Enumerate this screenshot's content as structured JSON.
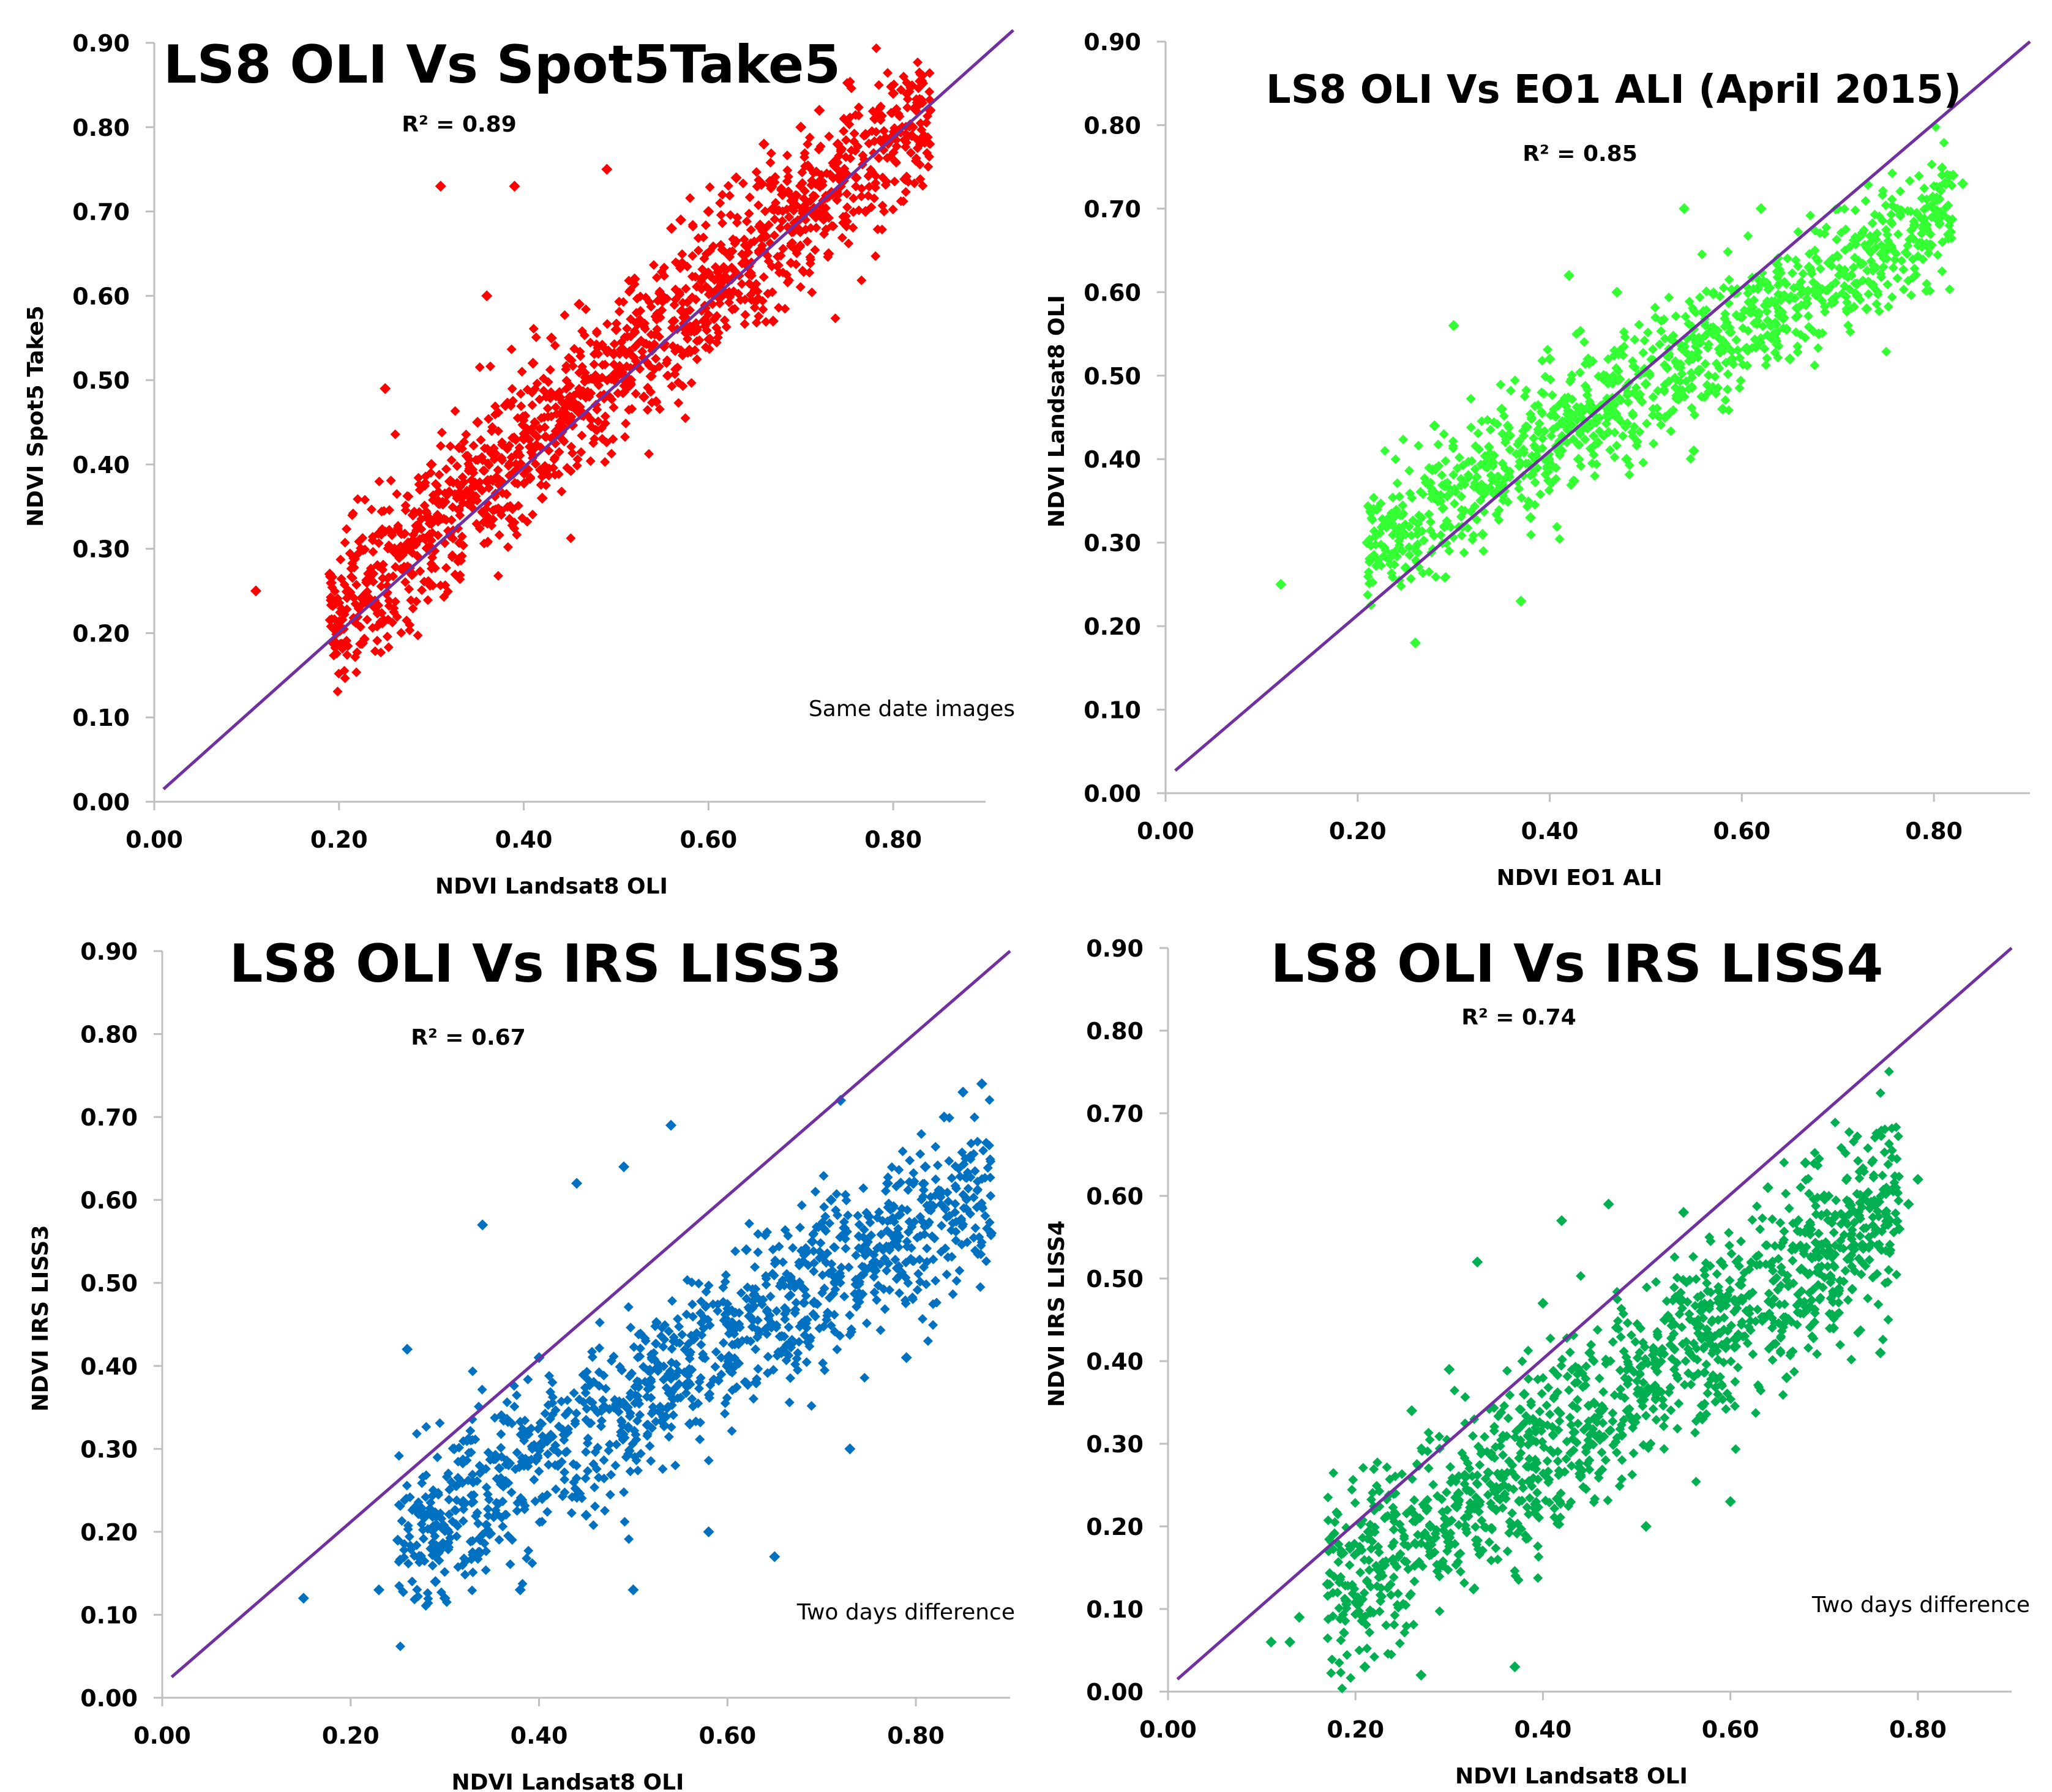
{
  "chart_data": [
    {
      "type": "scatter",
      "title": "LS8 OLI Vs Spot5Take5",
      "r2_label": "R² = 0.89",
      "note": "Same date images",
      "xlabel": "NDVI Landsat8 OLI",
      "ylabel": "NDVI Spot5 Take5",
      "xlim": [
        0.0,
        0.9
      ],
      "ylim": [
        0.0,
        0.9
      ],
      "xticks": [
        "0.00",
        "0.20",
        "0.40",
        "0.60",
        "0.80"
      ],
      "yticks": [
        "0.00",
        "0.10",
        "0.20",
        "0.30",
        "0.40",
        "0.50",
        "0.60",
        "0.70",
        "0.80",
        "0.90"
      ],
      "color": "#ff0000",
      "line_color": "#7030a0",
      "line": {
        "x": [
          0.01,
          0.93
        ],
        "y": [
          0.015,
          0.915
        ]
      },
      "cloud": {
        "x_min": 0.19,
        "x_max": 0.84,
        "slope": 0.93,
        "intercept": 0.045,
        "spread": 0.045,
        "density": 1400
      },
      "series": [
        {
          "name": "NDVI",
          "points": [
            [
              0.11,
              0.25
            ],
            [
              0.19,
              0.27
            ],
            [
              0.21,
              0.25
            ],
            [
              0.23,
              0.26
            ],
            [
              0.26,
              0.3
            ],
            [
              0.28,
              0.34
            ],
            [
              0.3,
              0.33
            ],
            [
              0.32,
              0.38
            ],
            [
              0.33,
              0.42
            ],
            [
              0.35,
              0.45
            ],
            [
              0.36,
              0.38
            ],
            [
              0.38,
              0.47
            ],
            [
              0.4,
              0.43
            ],
            [
              0.41,
              0.52
            ],
            [
              0.42,
              0.36
            ],
            [
              0.43,
              0.55
            ],
            [
              0.45,
              0.48
            ],
            [
              0.46,
              0.59
            ],
            [
              0.48,
              0.5
            ],
            [
              0.49,
              0.75
            ],
            [
              0.5,
              0.56
            ],
            [
              0.52,
              0.62
            ],
            [
              0.53,
              0.48
            ],
            [
              0.55,
              0.6
            ],
            [
              0.56,
              0.68
            ],
            [
              0.58,
              0.56
            ],
            [
              0.6,
              0.7
            ],
            [
              0.61,
              0.62
            ],
            [
              0.63,
              0.74
            ],
            [
              0.64,
              0.66
            ],
            [
              0.66,
              0.78
            ],
            [
              0.67,
              0.57
            ],
            [
              0.68,
              0.72
            ],
            [
              0.7,
              0.8
            ],
            [
              0.71,
              0.7
            ],
            [
              0.72,
              0.82
            ],
            [
              0.74,
              0.78
            ],
            [
              0.76,
              0.74
            ],
            [
              0.78,
              0.81
            ],
            [
              0.8,
              0.84
            ],
            [
              0.82,
              0.79
            ],
            [
              0.84,
              0.82
            ],
            [
              0.39,
              0.73
            ],
            [
              0.31,
              0.73
            ],
            [
              0.25,
              0.49
            ],
            [
              0.3,
              0.4
            ],
            [
              0.36,
              0.6
            ],
            [
              0.73,
              0.65
            ],
            [
              0.77,
              0.7
            ],
            [
              0.57,
              0.69
            ]
          ]
        }
      ]
    },
    {
      "type": "scatter",
      "title": "LS8 OLI Vs EO1 ALI (April 2015)",
      "r2_label": "R² = 0.85",
      "note": "",
      "xlabel": "NDVI EO1 ALI",
      "ylabel": "NDVI Landsat8 OLI",
      "xlim": [
        0.0,
        0.9
      ],
      "ylim": [
        0.0,
        0.9
      ],
      "xticks": [
        "0.00",
        "0.20",
        "0.40",
        "0.60",
        "0.80"
      ],
      "yticks": [
        "0.00",
        "0.10",
        "0.20",
        "0.30",
        "0.40",
        "0.50",
        "0.60",
        "0.70",
        "0.80",
        "0.90"
      ],
      "color": "#33ff33",
      "line_color": "#7030a0",
      "line": {
        "x": [
          0.01,
          0.9
        ],
        "y": [
          0.027,
          0.9
        ]
      },
      "cloud": {
        "x_min": 0.21,
        "x_max": 0.82,
        "slope": 0.66,
        "intercept": 0.16,
        "spread": 0.04,
        "density": 1100
      },
      "series": [
        {
          "name": "NDVI",
          "points": [
            [
              0.12,
              0.25
            ],
            [
              0.21,
              0.3
            ],
            [
              0.22,
              0.34
            ],
            [
              0.25,
              0.27
            ],
            [
              0.26,
              0.18
            ],
            [
              0.28,
              0.44
            ],
            [
              0.3,
              0.56
            ],
            [
              0.33,
              0.31
            ],
            [
              0.35,
              0.46
            ],
            [
              0.37,
              0.23
            ],
            [
              0.38,
              0.33
            ],
            [
              0.4,
              0.52
            ],
            [
              0.42,
              0.62
            ],
            [
              0.43,
              0.4
            ],
            [
              0.45,
              0.42
            ],
            [
              0.47,
              0.6
            ],
            [
              0.5,
              0.49
            ],
            [
              0.52,
              0.45
            ],
            [
              0.54,
              0.7
            ],
            [
              0.55,
              0.41
            ],
            [
              0.57,
              0.55
            ],
            [
              0.59,
              0.52
            ],
            [
              0.6,
              0.57
            ],
            [
              0.62,
              0.7
            ],
            [
              0.63,
              0.56
            ],
            [
              0.65,
              0.52
            ],
            [
              0.67,
              0.63
            ],
            [
              0.7,
              0.7
            ],
            [
              0.72,
              0.61
            ],
            [
              0.75,
              0.65
            ],
            [
              0.78,
              0.68
            ],
            [
              0.8,
              0.7
            ],
            [
              0.82,
              0.74
            ],
            [
              0.83,
              0.73
            ],
            [
              0.44,
              0.52
            ],
            [
              0.48,
              0.4
            ],
            [
              0.58,
              0.46
            ],
            [
              0.68,
              0.55
            ],
            [
              0.73,
              0.58
            ]
          ]
        }
      ]
    },
    {
      "type": "scatter",
      "title": "LS8 OLI Vs IRS LISS3",
      "r2_label": "R² = 0.67",
      "note": "Two days difference",
      "xlabel": "NDVI Landsat8 OLI",
      "ylabel": "NDVI IRS LISS3",
      "xlim": [
        0.0,
        0.9
      ],
      "ylim": [
        0.0,
        0.9
      ],
      "xticks": [
        "0.00",
        "0.20",
        "0.40",
        "0.60",
        "0.80"
      ],
      "yticks": [
        "0.00",
        "0.10",
        "0.20",
        "0.30",
        "0.40",
        "0.50",
        "0.60",
        "0.70",
        "0.80",
        "0.90"
      ],
      "color": "#0070c0",
      "line_color": "#7030a0",
      "line": {
        "x": [
          0.01,
          0.9
        ],
        "y": [
          0.025,
          0.9
        ]
      },
      "cloud": {
        "x_min": 0.25,
        "x_max": 0.88,
        "slope": 0.68,
        "intercept": 0.02,
        "spread": 0.05,
        "density": 1200
      },
      "series": [
        {
          "name": "NDVI",
          "points": [
            [
              0.15,
              0.12
            ],
            [
              0.23,
              0.13
            ],
            [
              0.25,
              0.19
            ],
            [
              0.26,
              0.42
            ],
            [
              0.28,
              0.22
            ],
            [
              0.29,
              0.14
            ],
            [
              0.3,
              0.12
            ],
            [
              0.31,
              0.3
            ],
            [
              0.33,
              0.26
            ],
            [
              0.34,
              0.57
            ],
            [
              0.36,
              0.34
            ],
            [
              0.38,
              0.13
            ],
            [
              0.4,
              0.41
            ],
            [
              0.42,
              0.28
            ],
            [
              0.44,
              0.62
            ],
            [
              0.45,
              0.22
            ],
            [
              0.47,
              0.35
            ],
            [
              0.49,
              0.64
            ],
            [
              0.5,
              0.13
            ],
            [
              0.52,
              0.41
            ],
            [
              0.54,
              0.69
            ],
            [
              0.56,
              0.33
            ],
            [
              0.58,
              0.2
            ],
            [
              0.6,
              0.45
            ],
            [
              0.62,
              0.54
            ],
            [
              0.63,
              0.38
            ],
            [
              0.65,
              0.17
            ],
            [
              0.67,
              0.5
            ],
            [
              0.69,
              0.55
            ],
            [
              0.71,
              0.6
            ],
            [
              0.72,
              0.72
            ],
            [
              0.73,
              0.3
            ],
            [
              0.75,
              0.58
            ],
            [
              0.77,
              0.62
            ],
            [
              0.79,
              0.41
            ],
            [
              0.81,
              0.64
            ],
            [
              0.83,
              0.7
            ],
            [
              0.85,
              0.73
            ],
            [
              0.87,
              0.74
            ],
            [
              0.88,
              0.56
            ]
          ]
        }
      ]
    },
    {
      "type": "scatter",
      "title": "LS8 OLI Vs IRS LISS4",
      "r2_label": "R² = 0.74",
      "note": "Two days difference",
      "xlabel": "NDVI Landsat8 OLI",
      "ylabel": "NDVI IRS LISS4",
      "xlim": [
        0.0,
        0.9
      ],
      "ylim": [
        0.0,
        0.9
      ],
      "xticks": [
        "0.00",
        "0.20",
        "0.40",
        "0.60",
        "0.80"
      ],
      "yticks": [
        "0.00",
        "0.10",
        "0.20",
        "0.30",
        "0.40",
        "0.50",
        "0.60",
        "0.70",
        "0.80",
        "0.90"
      ],
      "color": "#00b050",
      "line_color": "#7030a0",
      "line": {
        "x": [
          0.01,
          0.9
        ],
        "y": [
          0.015,
          0.9
        ]
      },
      "cloud": {
        "x_min": 0.17,
        "x_max": 0.78,
        "slope": 0.78,
        "intercept": -0.02,
        "spread": 0.055,
        "density": 1300
      },
      "series": [
        {
          "name": "NDVI",
          "points": [
            [
              0.11,
              0.06
            ],
            [
              0.13,
              0.06
            ],
            [
              0.14,
              0.09
            ],
            [
              0.17,
              0.13
            ],
            [
              0.19,
              0.11
            ],
            [
              0.21,
              0.03
            ],
            [
              0.22,
              0.22
            ],
            [
              0.24,
              0.16
            ],
            [
              0.26,
              0.34
            ],
            [
              0.27,
              0.02
            ],
            [
              0.28,
              0.2
            ],
            [
              0.3,
              0.39
            ],
            [
              0.31,
              0.24
            ],
            [
              0.33,
              0.52
            ],
            [
              0.35,
              0.22
            ],
            [
              0.37,
              0.03
            ],
            [
              0.38,
              0.36
            ],
            [
              0.4,
              0.47
            ],
            [
              0.42,
              0.57
            ],
            [
              0.44,
              0.26
            ],
            [
              0.45,
              0.41
            ],
            [
              0.47,
              0.59
            ],
            [
              0.49,
              0.34
            ],
            [
              0.51,
              0.2
            ],
            [
              0.53,
              0.45
            ],
            [
              0.55,
              0.58
            ],
            [
              0.57,
              0.33
            ],
            [
              0.59,
              0.52
            ],
            [
              0.6,
              0.23
            ],
            [
              0.62,
              0.48
            ],
            [
              0.64,
              0.61
            ],
            [
              0.66,
              0.38
            ],
            [
              0.68,
              0.64
            ],
            [
              0.7,
              0.6
            ],
            [
              0.71,
              0.44
            ],
            [
              0.74,
              0.54
            ],
            [
              0.76,
              0.41
            ],
            [
              0.78,
              0.56
            ],
            [
              0.79,
              0.59
            ],
            [
              0.8,
              0.62
            ]
          ]
        }
      ]
    }
  ]
}
